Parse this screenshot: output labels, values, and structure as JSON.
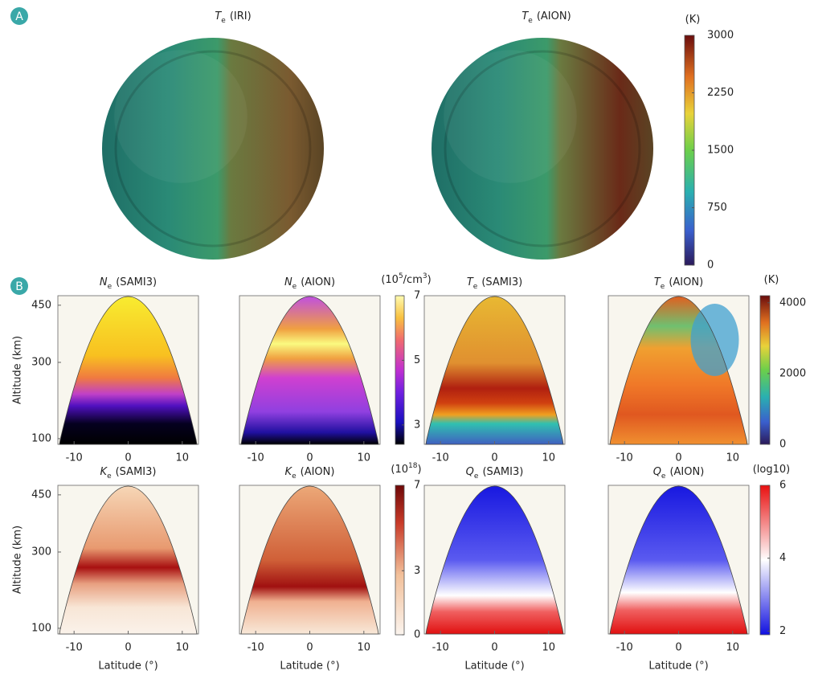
{
  "panels": [
    "A",
    "B"
  ],
  "chart_data": [
    {
      "type": "globe",
      "title": [
        {
          "text": "T",
          "italic": true
        },
        {
          "text": "e",
          "sub": true
        },
        {
          "text": "(IRI)"
        }
      ]
    },
    {
      "type": "globe",
      "title": [
        {
          "text": "T",
          "italic": true
        },
        {
          "text": "e",
          "sub": true
        },
        {
          "text": "(AION)"
        }
      ]
    },
    {
      "type": "colorbar",
      "label": [
        {
          "text": "(K)"
        }
      ],
      "colormap": "jet",
      "ylim": [
        0,
        3000
      ],
      "yticks": [
        0,
        750,
        1500,
        2250,
        3000
      ]
    },
    {
      "type": "heatmap",
      "field": "ne-sami3",
      "title": [
        {
          "text": "N",
          "italic": true
        },
        {
          "text": "e",
          "sub": true
        },
        {
          "text": "(SAMI3)"
        }
      ],
      "ylabel": "Altitude (km)",
      "xlim": [
        -13,
        13
      ],
      "xticks": [
        -10,
        0,
        10
      ],
      "ylim": [
        85,
        475
      ],
      "yticks": [
        100,
        300,
        450
      ]
    },
    {
      "type": "heatmap",
      "field": "ne-aion",
      "title": [
        {
          "text": "N",
          "italic": true
        },
        {
          "text": "e",
          "sub": true
        },
        {
          "text": "(AION)"
        }
      ],
      "xlim": [
        -13,
        13
      ],
      "xticks": [
        -10,
        0,
        10
      ]
    },
    {
      "type": "heatmap",
      "field": "te-sami3",
      "title": [
        {
          "text": "T",
          "italic": true
        },
        {
          "text": "e",
          "sub": true
        },
        {
          "text": "(SAMI3)"
        }
      ],
      "xlim": [
        -13,
        13
      ],
      "xticks": [
        -10,
        0,
        10
      ]
    },
    {
      "type": "heatmap",
      "field": "te-aion",
      "title": [
        {
          "text": "T",
          "italic": true
        },
        {
          "text": "e",
          "sub": true
        },
        {
          "text": "(AION)"
        }
      ],
      "xlim": [
        -13,
        13
      ],
      "xticks": [
        -10,
        0,
        10
      ]
    },
    {
      "type": "heatmap",
      "field": "ke-sami3",
      "title": [
        {
          "text": "K",
          "italic": true
        },
        {
          "text": "e",
          "sub": true
        },
        {
          "text": "(SAMI3)"
        }
      ],
      "ylabel": "Altitude (km)",
      "xlabel": "Latitude (°)",
      "xlim": [
        -13,
        13
      ],
      "xticks": [
        -10,
        0,
        10
      ],
      "ylim": [
        85,
        475
      ],
      "yticks": [
        100,
        300,
        450
      ]
    },
    {
      "type": "heatmap",
      "field": "ke-aion",
      "title": [
        {
          "text": "K",
          "italic": true
        },
        {
          "text": "e",
          "sub": true
        },
        {
          "text": "(AION)"
        }
      ],
      "xlabel": "Latitude (°)",
      "xlim": [
        -13,
        13
      ],
      "xticks": [
        -10,
        0,
        10
      ]
    },
    {
      "type": "heatmap",
      "field": "qe-sami3",
      "title": [
        {
          "text": "Q",
          "italic": true
        },
        {
          "text": "e",
          "sub": true
        },
        {
          "text": "(SAMI3)"
        }
      ],
      "xlabel": "Latitude (°)",
      "xlim": [
        -13,
        13
      ],
      "xticks": [
        -10,
        0,
        10
      ]
    },
    {
      "type": "heatmap",
      "field": "qe-aion",
      "title": [
        {
          "text": "Q",
          "italic": true
        },
        {
          "text": "e",
          "sub": true
        },
        {
          "text": "(AION)"
        }
      ],
      "xlabel": "Latitude (°)",
      "xlim": [
        -13,
        13
      ],
      "xticks": [
        -10,
        0,
        10
      ]
    },
    {
      "type": "colorbar",
      "label": [
        {
          "text": "(10"
        },
        {
          "text": "5",
          "sup": true
        },
        {
          "text": "/cm"
        },
        {
          "text": "3",
          "sup": true
        },
        {
          "text": ")"
        }
      ],
      "colormap": "plasma",
      "ylim": [
        2.4,
        7
      ],
      "yticks": [
        3,
        5,
        7
      ]
    },
    {
      "type": "colorbar",
      "label": [
        {
          "text": "(K)"
        }
      ],
      "colormap": "jet",
      "ylim": [
        0,
        4200
      ],
      "yticks": [
        0,
        2000,
        4000
      ]
    },
    {
      "type": "colorbar",
      "label": [
        {
          "text": "(10"
        },
        {
          "text": "18",
          "sup": true
        },
        {
          "text": ")"
        }
      ],
      "colormap": "reds",
      "ylim": [
        0,
        7
      ],
      "yticks": [
        0,
        3,
        7
      ]
    },
    {
      "type": "colorbar",
      "label": [
        {
          "text": "(log10)"
        }
      ],
      "colormap": "bwr",
      "ylim": [
        1.9,
        6
      ],
      "yticks": [
        2,
        4,
        6
      ]
    }
  ]
}
